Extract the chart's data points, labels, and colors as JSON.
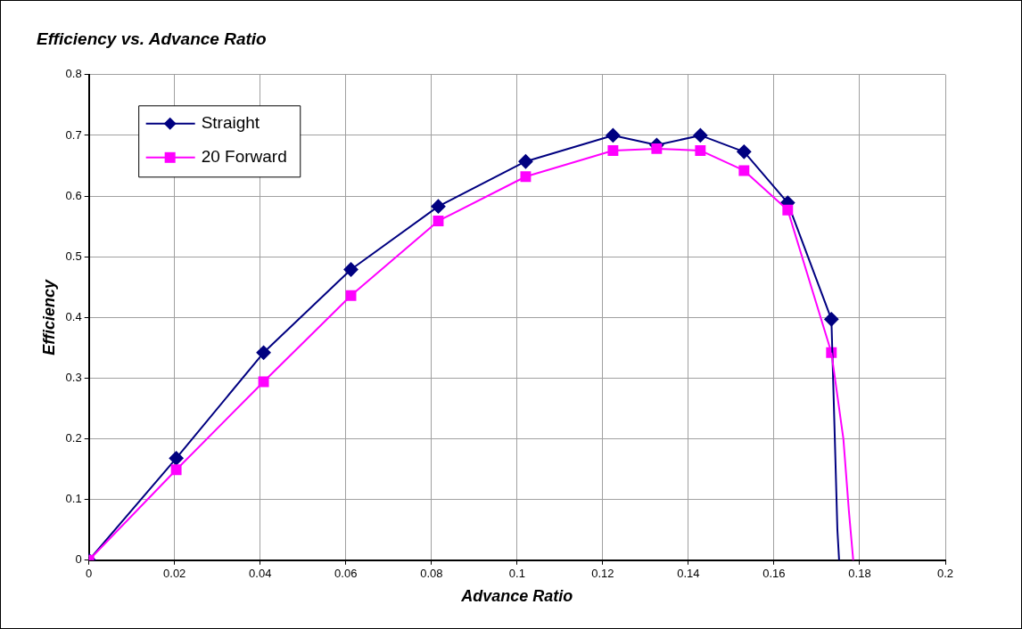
{
  "chart_data": {
    "type": "line",
    "title": "Efficiency vs. Advance Ratio",
    "xlabel": "Advance Ratio",
    "ylabel": "Efficiency",
    "xlim": [
      0,
      0.2
    ],
    "xticks": [
      0,
      0.02,
      0.04,
      0.06,
      0.08,
      0.1,
      0.12,
      0.14,
      0.16,
      0.18,
      0.2
    ],
    "ylim": [
      0,
      0.8
    ],
    "yticks": [
      0,
      0.1,
      0.2,
      0.3,
      0.4,
      0.5,
      0.6,
      0.7,
      0.8
    ],
    "grid": true,
    "legend": "top left",
    "line_style": "solid",
    "series": [
      {
        "name": "Straight",
        "color": "#000080",
        "marker": "diamond",
        "x": [
          0,
          0.0204,
          0.0408,
          0.0612,
          0.0816,
          0.102,
          0.1224,
          0.1326,
          0.1428,
          0.153,
          0.1632,
          0.1734
        ],
        "values": [
          0,
          0.168,
          0.342,
          0.479,
          0.583,
          0.657,
          0.7,
          0.684,
          0.7,
          0.673,
          0.589,
          0.397
        ]
      },
      {
        "name": "20 Forward",
        "color": "#ff00ff",
        "marker": "square",
        "x": [
          0,
          0.0204,
          0.0408,
          0.0612,
          0.0816,
          0.102,
          0.1224,
          0.1326,
          0.1428,
          0.153,
          0.1632,
          0.1734
        ],
        "values": [
          0,
          0.149,
          0.294,
          0.436,
          0.559,
          0.632,
          0.675,
          0.678,
          0.675,
          0.642,
          0.577,
          0.342
        ]
      },
      {
        "color": "#000080",
        "marker": "none",
        "x": [
          0.1734,
          0.1742,
          0.1748,
          0.1752
        ],
        "values": [
          0.397,
          0.2,
          0.05,
          0
        ]
      },
      {
        "color": "#ff00ff",
        "marker": "none",
        "x": [
          0.1734,
          0.1762,
          0.1775,
          0.1785
        ],
        "values": [
          0.342,
          0.2,
          0.08,
          0
        ]
      }
    ]
  }
}
